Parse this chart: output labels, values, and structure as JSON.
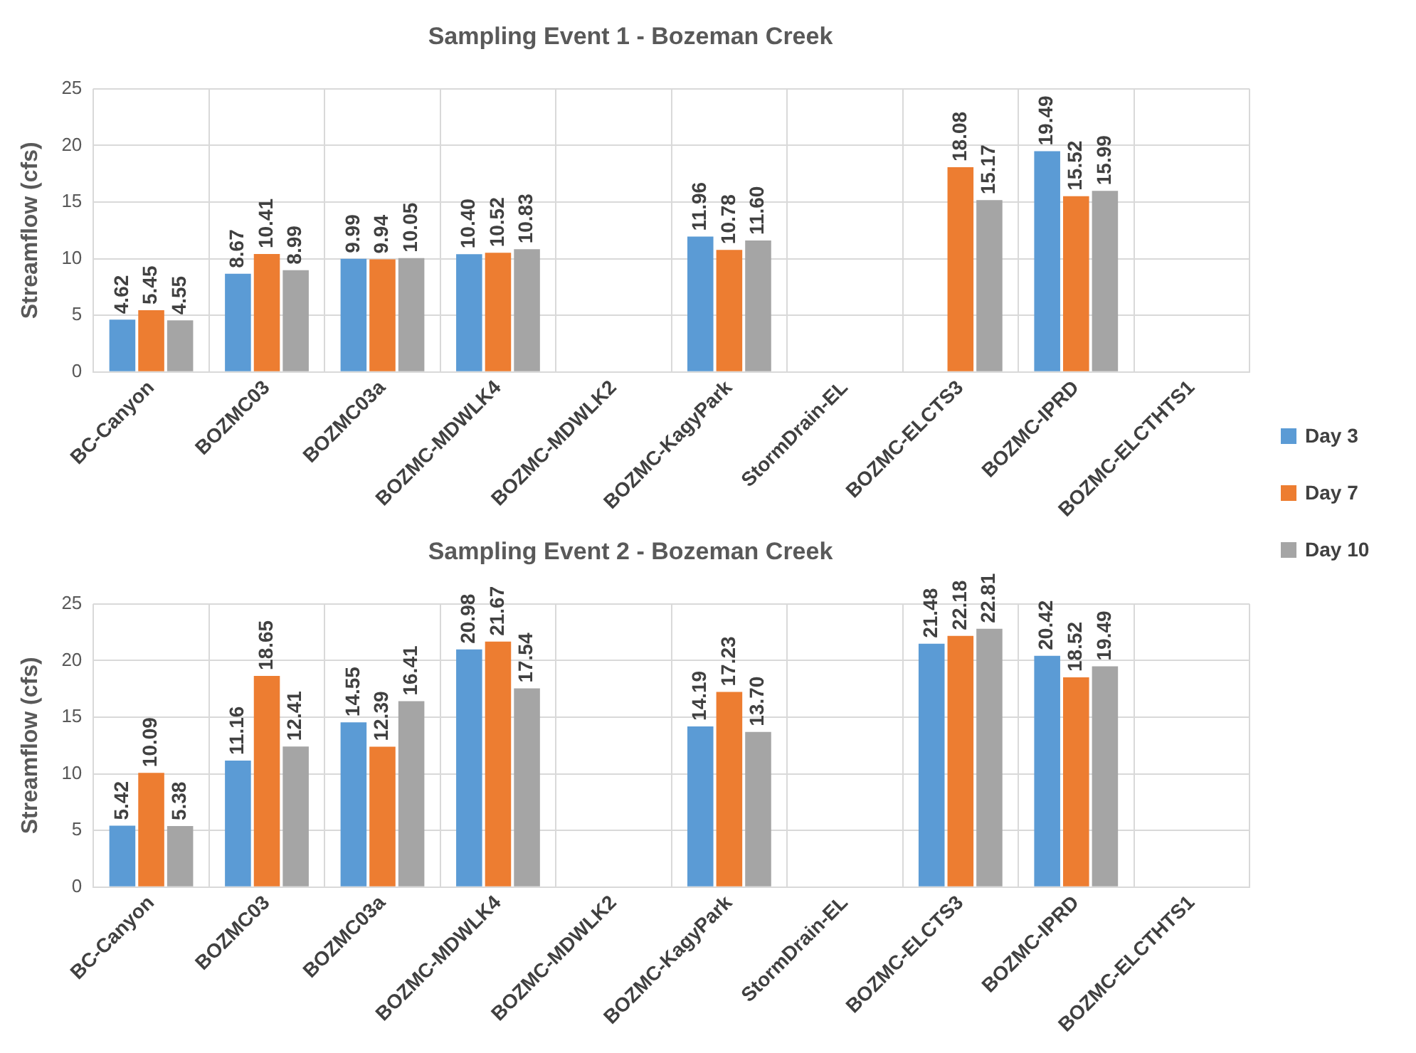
{
  "chart_data": [
    {
      "type": "bar",
      "title": "Sampling Event 1 - Bozeman Creek",
      "ylabel": "Streamflow (cfs)",
      "categories": [
        "BC-Canyon",
        "BOZMC03",
        "BOZMC03a",
        "BOZMC-MDWLK4",
        "BOZMC-MDWLK2",
        "BOZMC-KagyPark",
        "StormDrain-EL",
        "BOZMC-ELCTS3",
        "BOZMC-IPRD",
        "BOZMC-ELCTHTS1"
      ],
      "ylim": [
        0,
        25
      ],
      "yticks": [
        0,
        5,
        10,
        15,
        20,
        25
      ],
      "grid": true,
      "legend": "right",
      "series": [
        {
          "name": "Day 3",
          "color": "#5b9bd5",
          "values": [
            4.62,
            8.67,
            9.99,
            10.4,
            null,
            11.96,
            null,
            null,
            19.49,
            null
          ],
          "value_labels": [
            "4.62",
            "8.67",
            "9.99",
            "10.40",
            null,
            "11.96",
            null,
            null,
            "19.49",
            null
          ]
        },
        {
          "name": "Day 7",
          "color": "#ed7d31",
          "values": [
            5.45,
            10.41,
            9.94,
            10.52,
            null,
            10.78,
            null,
            18.08,
            15.52,
            null
          ],
          "value_labels": [
            "5.45",
            "10.41",
            "9.94",
            "10.52",
            null,
            "10.78",
            null,
            "18.08",
            "15.52",
            null
          ]
        },
        {
          "name": "Day 10",
          "color": "#a5a5a5",
          "values": [
            4.55,
            8.99,
            10.05,
            10.83,
            null,
            11.6,
            null,
            15.17,
            15.99,
            null
          ],
          "value_labels": [
            "4.55",
            "8.99",
            "10.05",
            "10.83",
            null,
            "11.60",
            null,
            "15.17",
            "15.99",
            null
          ]
        }
      ]
    },
    {
      "type": "bar",
      "title": "Sampling Event 2 - Bozeman Creek",
      "ylabel": "Streamflow (cfs)",
      "categories": [
        "BC-Canyon",
        "BOZMC03",
        "BOZMC03a",
        "BOZMC-MDWLK4",
        "BOZMC-MDWLK2",
        "BOZMC-KagyPark",
        "StormDrain-EL",
        "BOZMC-ELCTS3",
        "BOZMC-IPRD",
        "BOZMC-ELCTHTS1"
      ],
      "ylim": [
        0,
        25
      ],
      "yticks": [
        0,
        5,
        10,
        15,
        20,
        25
      ],
      "grid": true,
      "series": [
        {
          "color": "#5b9bd5",
          "values": [
            5.42,
            11.16,
            14.55,
            20.98,
            null,
            14.19,
            null,
            21.48,
            20.42,
            null
          ],
          "value_labels": [
            "5.42",
            "11.16",
            "14.55",
            "20.98",
            null,
            "14.19",
            null,
            "21.48",
            "20.42",
            null
          ]
        },
        {
          "color": "#ed7d31",
          "values": [
            10.09,
            18.65,
            12.39,
            21.67,
            null,
            17.23,
            null,
            22.18,
            18.52,
            null
          ],
          "value_labels": [
            "10.09",
            "18.65",
            "12.39",
            "21.67",
            null,
            "17.23",
            null,
            "22.18",
            "18.52",
            null
          ]
        },
        {
          "color": "#a5a5a5",
          "values": [
            5.38,
            12.41,
            16.41,
            17.54,
            null,
            13.7,
            null,
            22.81,
            19.49,
            null
          ],
          "value_labels": [
            "5.38",
            "12.41",
            "16.41",
            "17.54",
            null,
            "13.70",
            null,
            "22.81",
            "19.49",
            null
          ]
        }
      ]
    }
  ]
}
